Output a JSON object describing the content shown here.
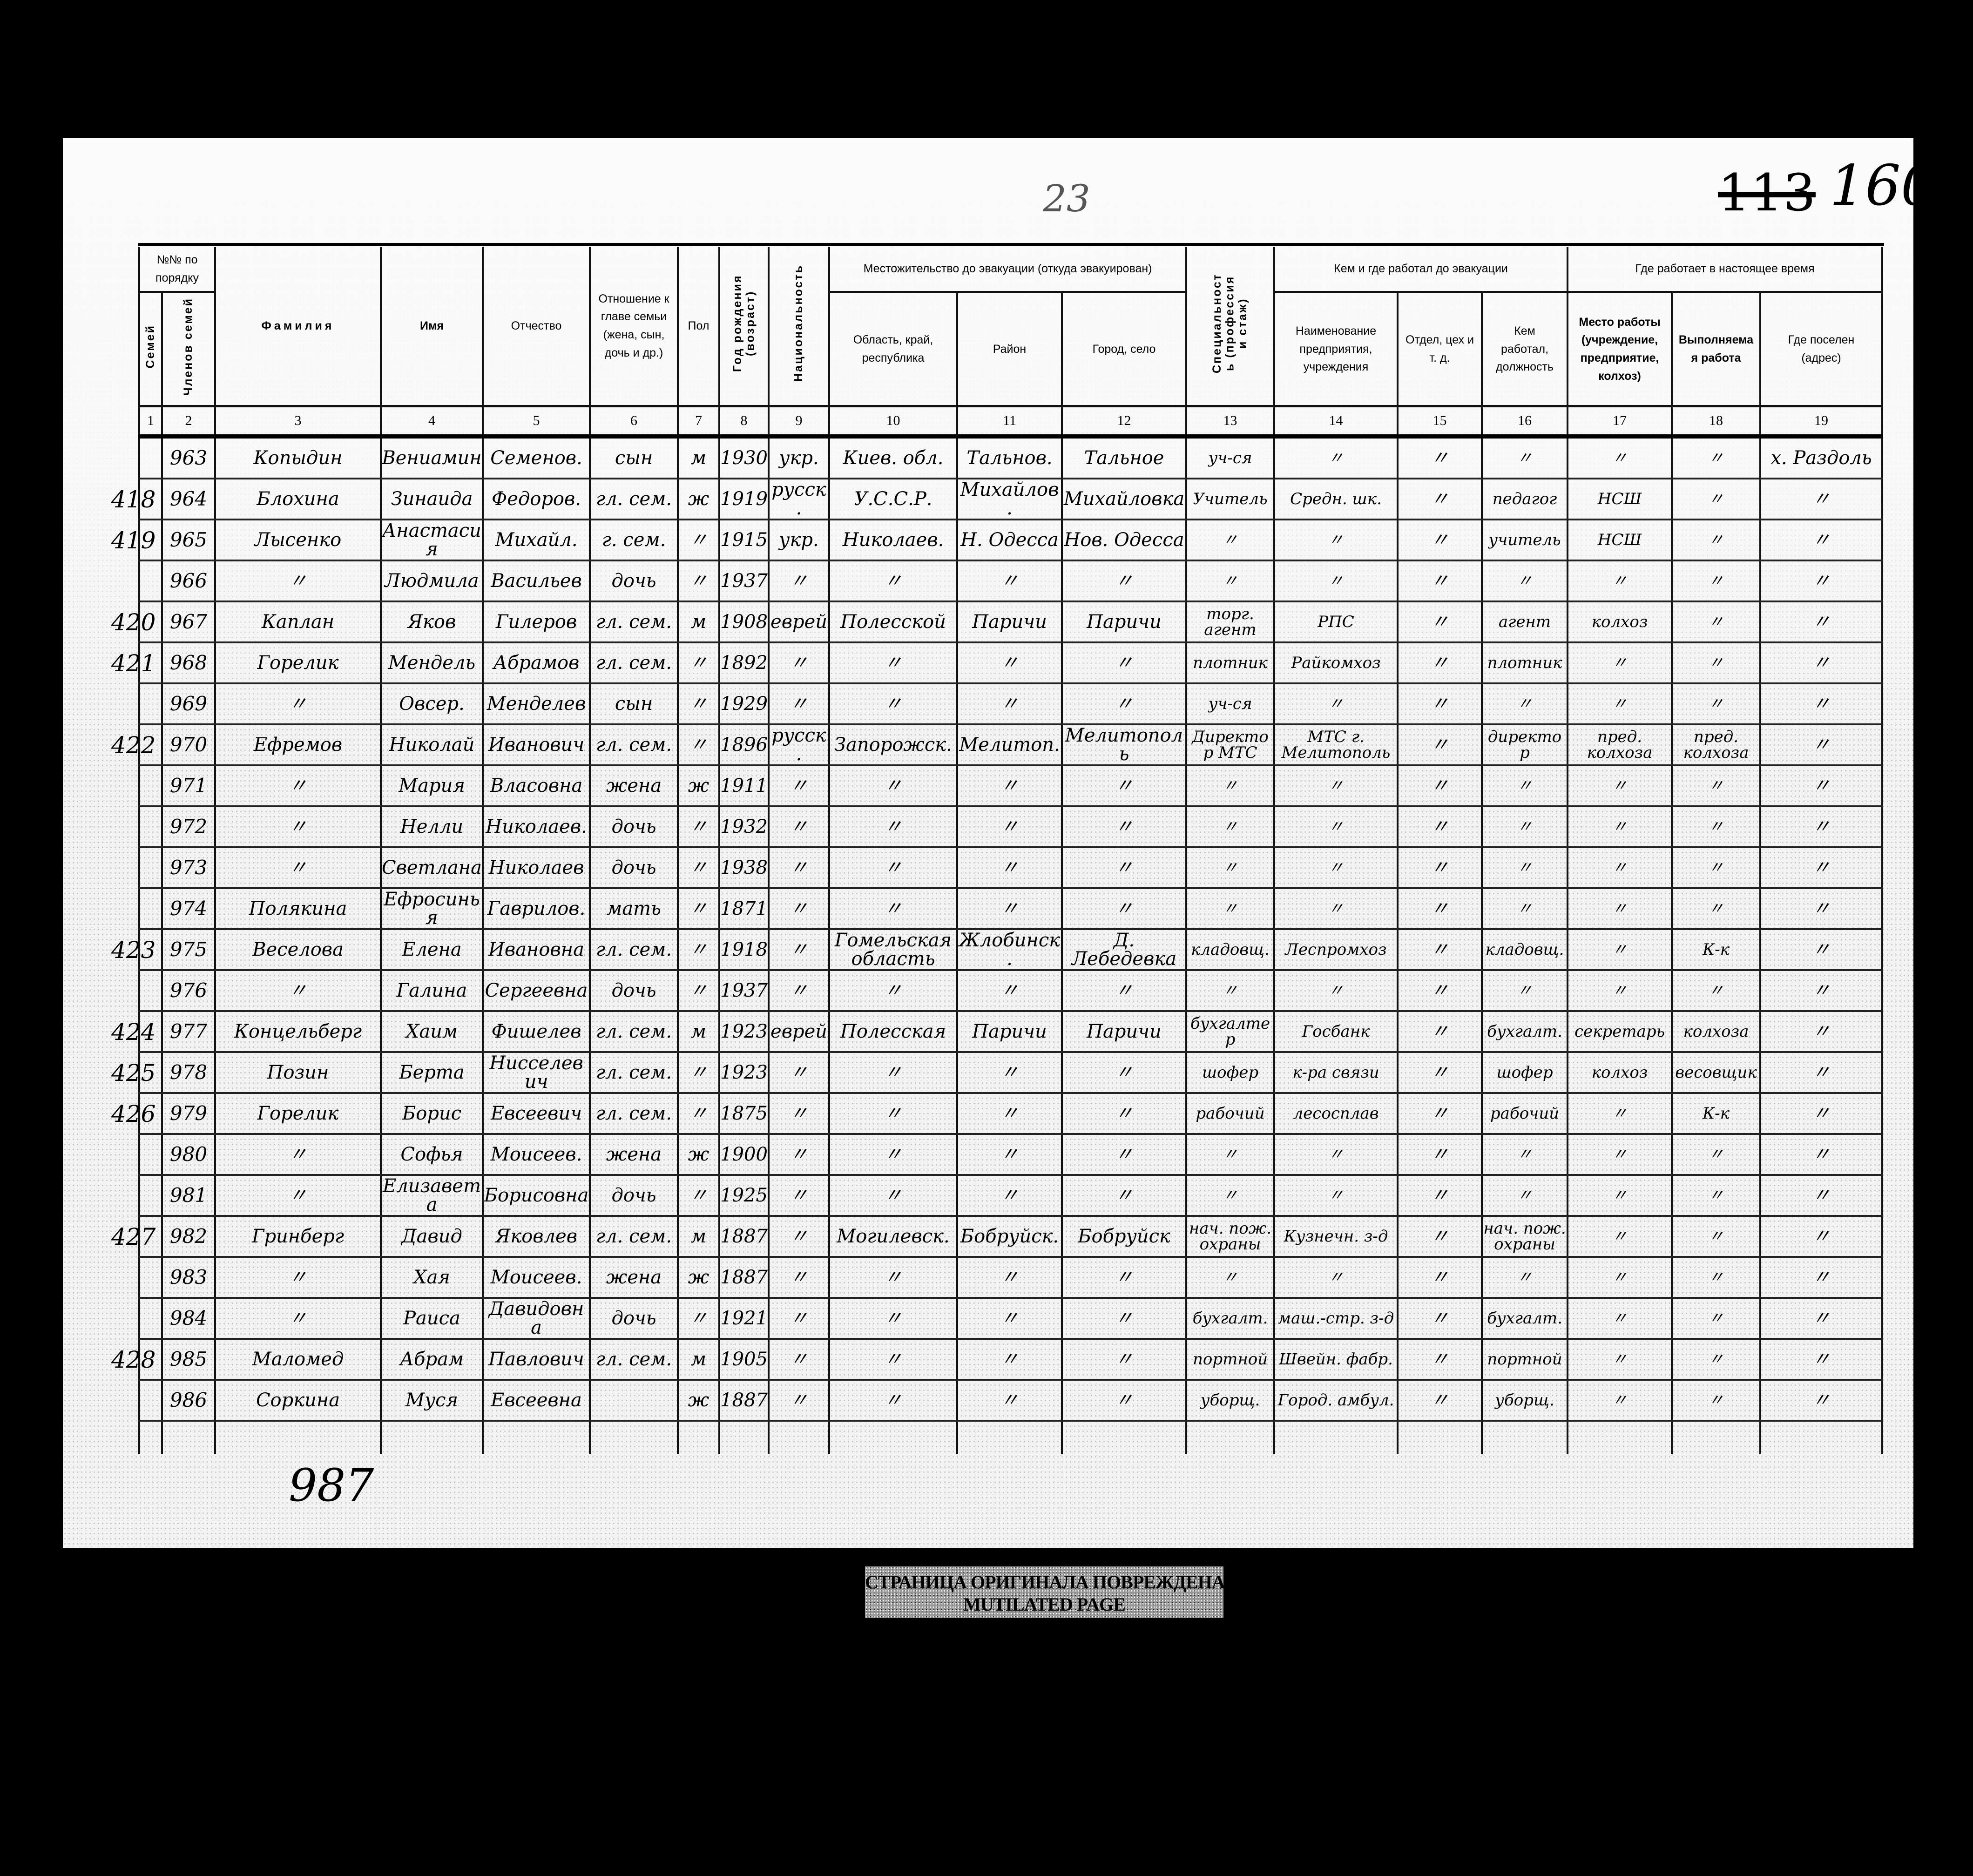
{
  "page": {
    "sheet_number": "23",
    "folio_old": "113",
    "folio": "160",
    "closing_count": "987",
    "stamp_line1": "СТРАНИЦА ОРИГИНАЛА ПОВРЕЖДЕНА",
    "stamp_line2": "MUTILATED PAGE"
  },
  "header": {
    "group_order": "№№ по порядку",
    "col1": "Семей",
    "col2": "Членов семей",
    "col3": "Фамилия",
    "col4": "Имя",
    "col5": "Отчество",
    "col6": "Отношение к главе семьи (жена, сын, дочь и др.)",
    "col7": "Пол",
    "col8": "Год рождения (возраст)",
    "col9": "Национальность",
    "group_residence": "Местожительство до эвакуации (откуда эвакуирован)",
    "col10": "Область, край, республика",
    "col11": "Район",
    "col12": "Город, село",
    "col13": "Специальность (профессия и стаж)",
    "group_prev_work": "Кем и где работал до эвакуации",
    "col14": "Наименование предприятия, учреждения",
    "col15": "Отдел, цех и т. д.",
    "col16": "Кем работал, должность",
    "group_cur_work": "Где работает в настоящее время",
    "col17": "Место работы (учреждение, предприятие, колхоз)",
    "col18": "Выполняемая работа",
    "col19": "Где поселен (адрес)",
    "numbers": [
      "1",
      "2",
      "3",
      "4",
      "5",
      "6",
      "7",
      "8",
      "9",
      "10",
      "11",
      "12",
      "13",
      "14",
      "15",
      "16",
      "17",
      "18",
      "19"
    ]
  },
  "rows": [
    [
      "",
      "963",
      "Копыдин",
      "Вениамин",
      "Семенов.",
      "сын",
      "м",
      "1930",
      "укр.",
      "Киев. обл.",
      "Тальнов.",
      "Тальное",
      "уч-ся",
      "〃",
      "〃",
      "〃",
      "〃",
      "〃",
      "х. Раздоль"
    ],
    [
      "418",
      "964",
      "Блохина",
      "Зинаида",
      "Федоров.",
      "гл. сем.",
      "ж",
      "1919",
      "русск.",
      "У.С.С.Р.",
      "Михайлов.",
      "Михайловка",
      "Учитель",
      "Средн. шк.",
      "〃",
      "педагог",
      "НСШ",
      "〃",
      "〃"
    ],
    [
      "419",
      "965",
      "Лысенко",
      "Анастасия",
      "Михайл.",
      "г. сем.",
      "〃",
      "1915",
      "укр.",
      "Николаев.",
      "Н. Одесса",
      "Нов. Одесса",
      "〃",
      "〃",
      "〃",
      "учитель",
      "НСШ",
      "〃",
      "〃"
    ],
    [
      "",
      "966",
      "〃",
      "Людмила",
      "Васильев",
      "дочь",
      "〃",
      "1937",
      "〃",
      "〃",
      "〃",
      "〃",
      "〃",
      "〃",
      "〃",
      "〃",
      "〃",
      "〃",
      "〃"
    ],
    [
      "420",
      "967",
      "Каплан",
      "Яков",
      "Гилеров",
      "гл. сем.",
      "м",
      "1908",
      "еврей",
      "Полесской",
      "Паричи",
      "Паричи",
      "торг. агент",
      "РПС",
      "〃",
      "агент",
      "колхоз",
      "〃",
      "〃"
    ],
    [
      "421",
      "968",
      "Горелик",
      "Мендель",
      "Абрамов",
      "гл. сем.",
      "〃",
      "1892",
      "〃",
      "〃",
      "〃",
      "〃",
      "плотник",
      "Райкомхоз",
      "〃",
      "плотник",
      "〃",
      "〃",
      "〃"
    ],
    [
      "",
      "969",
      "〃",
      "Овсер.",
      "Менделев",
      "сын",
      "〃",
      "1929",
      "〃",
      "〃",
      "〃",
      "〃",
      "уч-ся",
      "〃",
      "〃",
      "〃",
      "〃",
      "〃",
      "〃"
    ],
    [
      "422",
      "970",
      "Ефремов",
      "Николай",
      "Иванович",
      "гл. сем.",
      "〃",
      "1896",
      "русск.",
      "Запорожск.",
      "Мелитоп.",
      "Мелитополь",
      "Директор МТС",
      "МТС г. Мелитополь",
      "〃",
      "директор",
      "пред. колхоза",
      "пред. колхоза",
      "〃"
    ],
    [
      "",
      "971",
      "〃",
      "Мария",
      "Власовна",
      "жена",
      "ж",
      "1911",
      "〃",
      "〃",
      "〃",
      "〃",
      "〃",
      "〃",
      "〃",
      "〃",
      "〃",
      "〃",
      "〃"
    ],
    [
      "",
      "972",
      "〃",
      "Нелли",
      "Николаев.",
      "дочь",
      "〃",
      "1932",
      "〃",
      "〃",
      "〃",
      "〃",
      "〃",
      "〃",
      "〃",
      "〃",
      "〃",
      "〃",
      "〃"
    ],
    [
      "",
      "973",
      "〃",
      "Светлана",
      "Николаев",
      "дочь",
      "〃",
      "1938",
      "〃",
      "〃",
      "〃",
      "〃",
      "〃",
      "〃",
      "〃",
      "〃",
      "〃",
      "〃",
      "〃"
    ],
    [
      "",
      "974",
      "Полякина",
      "Ефросинья",
      "Гаврилов.",
      "мать",
      "〃",
      "1871",
      "〃",
      "〃",
      "〃",
      "〃",
      "〃",
      "〃",
      "〃",
      "〃",
      "〃",
      "〃",
      "〃"
    ],
    [
      "423",
      "975",
      "Веселова",
      "Елена",
      "Ивановна",
      "гл. сем.",
      "〃",
      "1918",
      "〃",
      "Гомельская область",
      "Жлобинск.",
      "Д. Лебедевка",
      "кладовщ.",
      "Леспромхоз",
      "〃",
      "кладовщ.",
      "〃",
      "К-к",
      "〃"
    ],
    [
      "",
      "976",
      "〃",
      "Галина",
      "Сергеевна",
      "дочь",
      "〃",
      "1937",
      "〃",
      "〃",
      "〃",
      "〃",
      "〃",
      "〃",
      "〃",
      "〃",
      "〃",
      "〃",
      "〃"
    ],
    [
      "424",
      "977",
      "Концельберг",
      "Хаим",
      "Фишелев",
      "гл. сем.",
      "м",
      "1923",
      "еврей",
      "Полесская",
      "Паричи",
      "Паричи",
      "бухгалтер",
      "Госбанк",
      "〃",
      "бухгалт.",
      "секретарь",
      "колхоза",
      "〃"
    ],
    [
      "425",
      "978",
      "Позин",
      "Берта",
      "Нисселевич",
      "гл. сем.",
      "〃",
      "1923",
      "〃",
      "〃",
      "〃",
      "〃",
      "шофер",
      "к-ра связи",
      "〃",
      "шофер",
      "колхоз",
      "весовщик",
      "〃"
    ],
    [
      "426",
      "979",
      "Горелик",
      "Борис",
      "Евсеевич",
      "гл. сем.",
      "〃",
      "1875",
      "〃",
      "〃",
      "〃",
      "〃",
      "рабочий",
      "лесосплав",
      "〃",
      "рабочий",
      "〃",
      "К-к",
      "〃"
    ],
    [
      "",
      "980",
      "〃",
      "Софья",
      "Моисеев.",
      "жена",
      "ж",
      "1900",
      "〃",
      "〃",
      "〃",
      "〃",
      "〃",
      "〃",
      "〃",
      "〃",
      "〃",
      "〃",
      "〃"
    ],
    [
      "",
      "981",
      "〃",
      "Елизавета",
      "Борисовна",
      "дочь",
      "〃",
      "1925",
      "〃",
      "〃",
      "〃",
      "〃",
      "〃",
      "〃",
      "〃",
      "〃",
      "〃",
      "〃",
      "〃"
    ],
    [
      "427",
      "982",
      "Гринберг",
      "Давид",
      "Яковлев",
      "гл. сем.",
      "м",
      "1887",
      "〃",
      "Могилевск.",
      "Бобруйск.",
      "Бобруйск",
      "нач. пож. охраны",
      "Кузнечн. з-д",
      "〃",
      "нач. пож. охраны",
      "〃",
      "〃",
      "〃"
    ],
    [
      "",
      "983",
      "〃",
      "Хая",
      "Моисеев.",
      "жена",
      "ж",
      "1887",
      "〃",
      "〃",
      "〃",
      "〃",
      "〃",
      "〃",
      "〃",
      "〃",
      "〃",
      "〃",
      "〃"
    ],
    [
      "",
      "984",
      "〃",
      "Раиса",
      "Давидовна",
      "дочь",
      "〃",
      "1921",
      "〃",
      "〃",
      "〃",
      "〃",
      "бухгалт.",
      "маш.-стр. з-д",
      "〃",
      "бухгалт.",
      "〃",
      "〃",
      "〃"
    ],
    [
      "428",
      "985",
      "Маломед",
      "Абрам",
      "Павлович",
      "гл. сем.",
      "м",
      "1905",
      "〃",
      "〃",
      "〃",
      "〃",
      "портной",
      "Швейн. фабр.",
      "〃",
      "портной",
      "〃",
      "〃",
      "〃"
    ],
    [
      "",
      "986",
      "Соркина",
      "Муся",
      "Евсеевна",
      "",
      "ж",
      "1887",
      "〃",
      "〃",
      "〃",
      "〃",
      "уборщ.",
      "Город. амбул.",
      "〃",
      "уборщ.",
      "〃",
      "〃",
      "〃"
    ]
  ]
}
